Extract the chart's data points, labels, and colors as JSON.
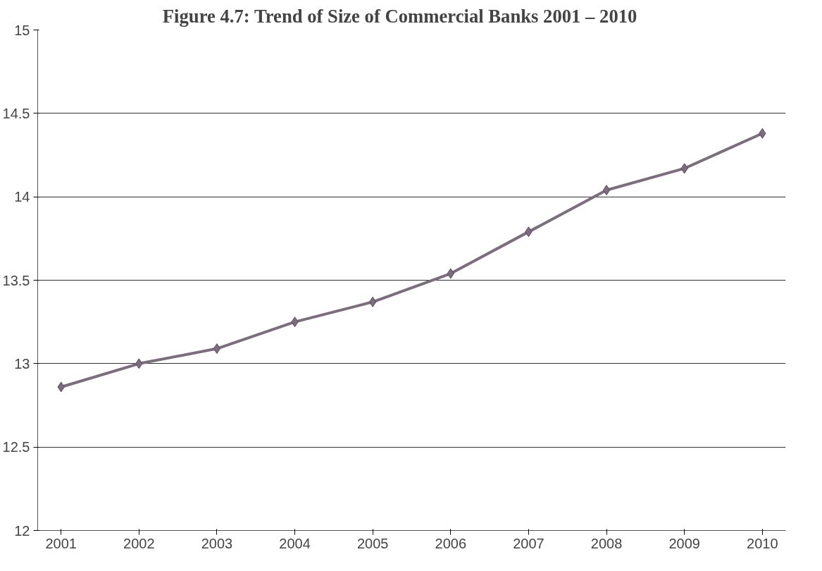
{
  "chart_data": {
    "type": "line",
    "title": "Figure 4.7:      Trend of Size of Commercial Banks 2001 – 2010",
    "categories": [
      "2001",
      "2002",
      "2003",
      "2004",
      "2005",
      "2006",
      "2007",
      "2008",
      "2009",
      "2010"
    ],
    "series": [
      {
        "color": "#7d6b7f",
        "values": [
          12.86,
          13.0,
          13.09,
          13.25,
          13.37,
          13.54,
          13.79,
          14.04,
          14.17,
          14.38
        ]
      }
    ],
    "ylim": [
      12,
      15
    ],
    "yticks": [
      12,
      12.5,
      13,
      13.5,
      14,
      14.5,
      15
    ],
    "grid": "y",
    "marker": "diamond",
    "line_style": "solid"
  }
}
